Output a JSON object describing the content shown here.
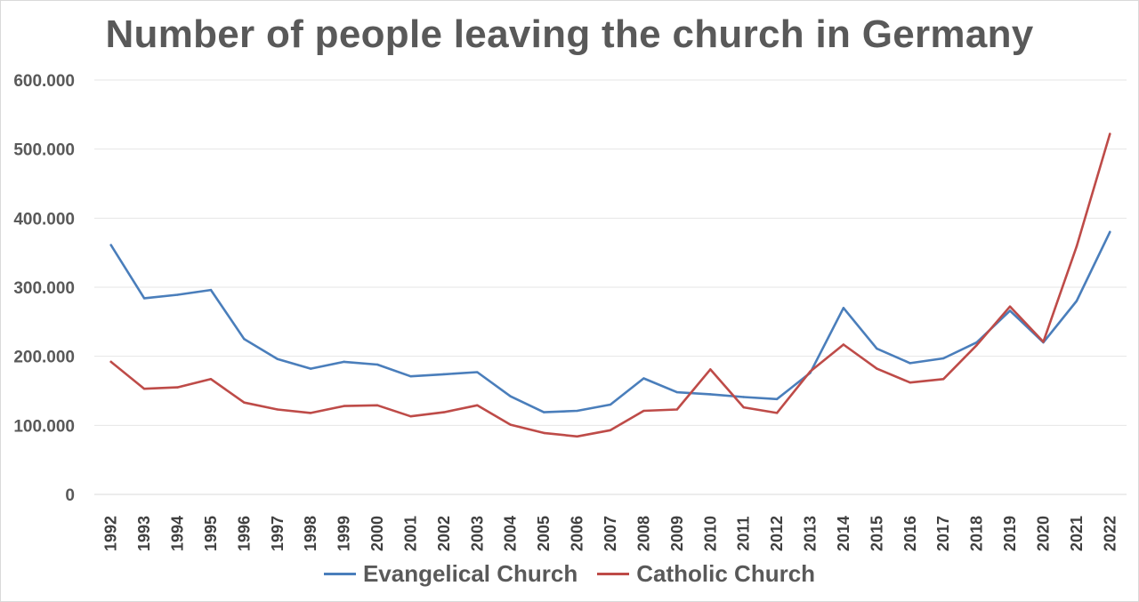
{
  "chart_data": {
    "type": "line",
    "title": "Number of people leaving the church in Germany",
    "xlabel": "",
    "ylabel": "",
    "ylim": [
      0,
      600000
    ],
    "y_ticks": [
      0,
      100000,
      200000,
      300000,
      400000,
      500000,
      600000
    ],
    "y_tick_labels": [
      "0",
      "100.000",
      "200.000",
      "300.000",
      "400.000",
      "500.000",
      "600.000"
    ],
    "grid": "horizontal",
    "legend_position": "bottom",
    "categories": [
      "1992",
      "1993",
      "1994",
      "1995",
      "1996",
      "1997",
      "1998",
      "1999",
      "2000",
      "2001",
      "2002",
      "2003",
      "2004",
      "2005",
      "2006",
      "2007",
      "2008",
      "2009",
      "2010",
      "2011",
      "2012",
      "2013",
      "2014",
      "2015",
      "2016",
      "2017",
      "2018",
      "2019",
      "2020",
      "2021",
      "2022"
    ],
    "series": [
      {
        "name": "Evangelical Church",
        "color": "#4a7ebb",
        "values": [
          361000,
          284000,
          289000,
          296000,
          225000,
          196000,
          182000,
          192000,
          188000,
          171000,
          174000,
          177000,
          142000,
          119000,
          121000,
          130000,
          168000,
          148000,
          145000,
          141000,
          138000,
          176000,
          270000,
          211000,
          190000,
          197000,
          220000,
          266000,
          220000,
          280000,
          380000
        ]
      },
      {
        "name": "Catholic Church",
        "color": "#be4b48",
        "values": [
          192000,
          153000,
          155000,
          167000,
          133000,
          123000,
          118000,
          128000,
          129000,
          113000,
          119000,
          129000,
          101000,
          89000,
          84000,
          93000,
          121000,
          123000,
          181000,
          126000,
          118000,
          178000,
          217000,
          182000,
          162000,
          167000,
          216000,
          272000,
          221000,
          359000,
          522000
        ]
      }
    ]
  }
}
